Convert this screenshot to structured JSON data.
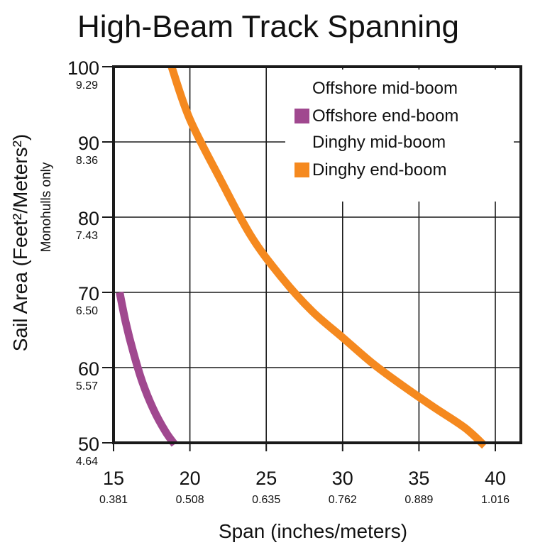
{
  "chart_data": {
    "type": "line",
    "title": "High-Beam Track Spanning",
    "xlabel": "Span (inches/meters)",
    "ylabel": "Sail Area (Feet²/Meters²)",
    "ylabel_sub": "Monohulls only",
    "xlim": [
      15,
      40
    ],
    "ylim": [
      50,
      100
    ],
    "grid": true,
    "legend_position": "top-right",
    "x_ticks": [
      {
        "value": 15,
        "label": "15",
        "sublabel": "0.381"
      },
      {
        "value": 20,
        "label": "20",
        "sublabel": "0.508"
      },
      {
        "value": 25,
        "label": "25",
        "sublabel": "0.635"
      },
      {
        "value": 30,
        "label": "30",
        "sublabel": "0.762"
      },
      {
        "value": 35,
        "label": "35",
        "sublabel": "0.889"
      },
      {
        "value": 40,
        "label": "40",
        "sublabel": "1.016"
      }
    ],
    "y_ticks": [
      {
        "value": 100,
        "label": "100",
        "sublabel": "9.29"
      },
      {
        "value": 90,
        "label": "90",
        "sublabel": "8.36"
      },
      {
        "value": 80,
        "label": "80",
        "sublabel": "7.43"
      },
      {
        "value": 70,
        "label": "70",
        "sublabel": "6.50"
      },
      {
        "value": 60,
        "label": "60",
        "sublabel": "5.57"
      },
      {
        "value": 50,
        "label": "50",
        "sublabel": "4.64"
      }
    ],
    "legend": [
      {
        "label": "Offshore mid-boom",
        "swatch": false
      },
      {
        "label": "Offshore end-boom",
        "swatch": true,
        "color": "#a0488f"
      },
      {
        "label": "Dinghy mid-boom",
        "swatch": false
      },
      {
        "label": "Dinghy end-boom",
        "swatch": true,
        "color": "#f5891f"
      }
    ],
    "series": [
      {
        "name": "Offshore end-boom",
        "color": "#a0488f",
        "points": [
          [
            15.4,
            70
          ],
          [
            15.8,
            66
          ],
          [
            16.3,
            62
          ],
          [
            16.9,
            58
          ],
          [
            17.6,
            54.5
          ],
          [
            18.4,
            51.5
          ],
          [
            19.0,
            49.8
          ]
        ]
      },
      {
        "name": "Dinghy end-boom",
        "color": "#f5891f",
        "points": [
          [
            18.8,
            100
          ],
          [
            20,
            93
          ],
          [
            22,
            85
          ],
          [
            24,
            77.5
          ],
          [
            26,
            72
          ],
          [
            28,
            67.5
          ],
          [
            30,
            64
          ],
          [
            32,
            60.5
          ],
          [
            34,
            57.5
          ],
          [
            36,
            54.7
          ],
          [
            38,
            52
          ],
          [
            39.3,
            49.6
          ]
        ]
      }
    ]
  }
}
